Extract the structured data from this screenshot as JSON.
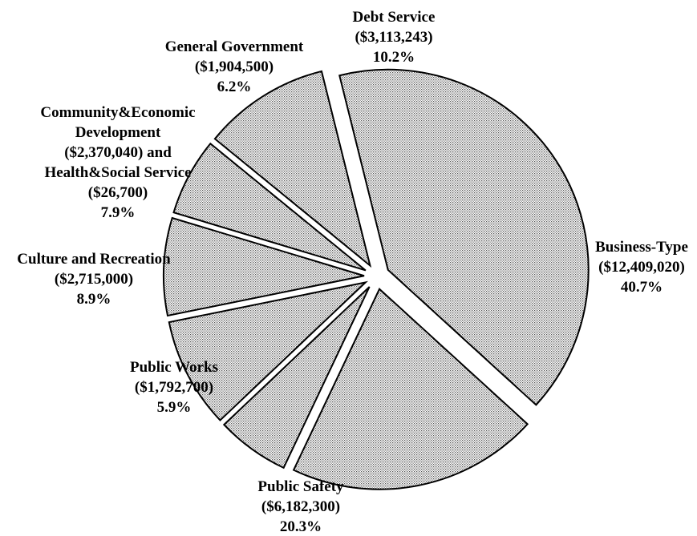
{
  "chart_data": {
    "type": "pie",
    "title": "",
    "legend": "none",
    "slices": [
      {
        "label_lines": [
          "Business-Type",
          "($12,409,020)",
          "40.7%"
        ],
        "name": "Business-Type",
        "value": 12409020,
        "percent": 40.7
      },
      {
        "label_lines": [
          "Public Safety",
          "($6,182,300)",
          "20.3%"
        ],
        "name": "Public Safety",
        "value": 6182300,
        "percent": 20.3
      },
      {
        "label_lines": [
          "Public Works",
          "($1,792,700)",
          "5.9%"
        ],
        "name": "Public Works",
        "value": 1792700,
        "percent": 5.9
      },
      {
        "label_lines": [
          "Culture and Recreation",
          "($2,715,000)",
          "8.9%"
        ],
        "name": "Culture and Recreation",
        "value": 2715000,
        "percent": 8.9
      },
      {
        "label_lines": [
          "Community&Economic",
          "Development",
          "($2,370,040) and",
          "Health&Social Service",
          "($26,700)",
          "7.9%"
        ],
        "name": "Community&Economic Development and Health&Social Service",
        "value": 2396740,
        "percent": 7.9
      },
      {
        "label_lines": [
          "General Government",
          "($1,904,500)",
          "6.2%"
        ],
        "name": "General Government",
        "value": 1904500,
        "percent": 6.2
      },
      {
        "label_lines": [
          "Debt Service",
          "($3,113,243)",
          "10.2%"
        ],
        "name": "Debt Service",
        "value": 3113243,
        "percent": 10.2
      }
    ]
  }
}
